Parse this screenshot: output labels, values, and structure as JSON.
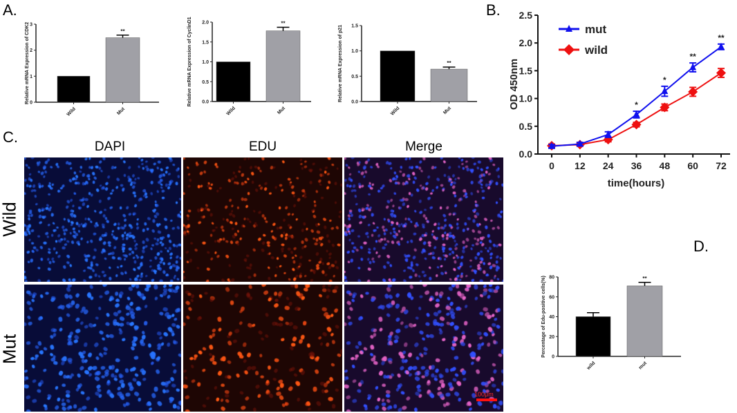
{
  "panel_labels": {
    "a": "A.",
    "b": "B.",
    "c": "C.",
    "d": "D."
  },
  "microscopy": {
    "columns": [
      "DAPI",
      "EDU",
      "Merge"
    ],
    "rows": [
      "Wild",
      "Mut"
    ],
    "scale_bar": "100μm",
    "colors": {
      "dapi": "#2a4dff",
      "edu": "#ff3a12",
      "merge_pink": "#e070c0"
    }
  },
  "chart_data": [
    {
      "id": "cdk2",
      "type": "bar",
      "title": "",
      "ylabel": "Relative mRNA Expression of CDK2",
      "xlabel": "",
      "categories": [
        "Wild",
        "Mut"
      ],
      "values": [
        1.0,
        2.48
      ],
      "errors": [
        0.0,
        0.1
      ],
      "annotations": [
        "",
        "**"
      ],
      "ylim": [
        0,
        3
      ],
      "yticks": [
        "0",
        "1",
        "2",
        "3"
      ],
      "colors": [
        "#000000",
        "#a0a0a6"
      ]
    },
    {
      "id": "cyclind1",
      "type": "bar",
      "title": "",
      "ylabel": "Relative mRNA Expression of CyclinD1",
      "xlabel": "",
      "categories": [
        "Wild",
        "Mut"
      ],
      "values": [
        1.0,
        1.78
      ],
      "errors": [
        0.0,
        0.09
      ],
      "annotations": [
        "",
        "**"
      ],
      "ylim": [
        0,
        2.0
      ],
      "yticks": [
        "0.0",
        "0.5",
        "1.0",
        "1.5",
        "2.0"
      ],
      "colors": [
        "#000000",
        "#a0a0a6"
      ]
    },
    {
      "id": "p21",
      "type": "bar",
      "title": "",
      "ylabel": "Relative mRNA Expression of p21",
      "xlabel": "",
      "categories": [
        "Wild",
        "Mut"
      ],
      "values": [
        1.0,
        0.64
      ],
      "errors": [
        0.0,
        0.04
      ],
      "annotations": [
        "",
        "**"
      ],
      "ylim": [
        0,
        1.5
      ],
      "yticks": [
        "0.0",
        "0.5",
        "1.0",
        "1.5"
      ],
      "colors": [
        "#000000",
        "#a0a0a6"
      ]
    },
    {
      "id": "growth",
      "type": "line",
      "title": "",
      "xlabel": "time(hours)",
      "ylabel": "OD 450nm",
      "x": [
        0,
        12,
        24,
        36,
        48,
        60,
        72
      ],
      "xticks": [
        "0",
        "12",
        "24",
        "36",
        "48",
        "60",
        "72"
      ],
      "ylim": [
        0,
        2.5
      ],
      "yticks": [
        "0.0",
        "0.5",
        "1.0",
        "1.5",
        "2.0",
        "2.5"
      ],
      "legend_position": "top-left",
      "series": [
        {
          "name": "mut",
          "color": "#1010ee",
          "marker": "triangle",
          "values": [
            0.14,
            0.18,
            0.35,
            0.71,
            1.13,
            1.56,
            1.93
          ],
          "errors": [
            0.03,
            0.03,
            0.05,
            0.06,
            0.09,
            0.08,
            0.05
          ]
        },
        {
          "name": "wild",
          "color": "#ee1010",
          "marker": "diamond",
          "values": [
            0.15,
            0.17,
            0.26,
            0.53,
            0.84,
            1.12,
            1.46
          ],
          "errors": [
            0.03,
            0.03,
            0.04,
            0.04,
            0.06,
            0.08,
            0.08
          ]
        }
      ],
      "annotations": [
        "",
        "",
        "",
        "*",
        "*",
        "**",
        "**"
      ]
    },
    {
      "id": "edu",
      "type": "bar",
      "title": "",
      "ylabel": "Percentage of Edu-positive cells(%)",
      "xlabel": "",
      "categories": [
        "wild",
        "mut"
      ],
      "values": [
        40,
        71
      ],
      "errors": [
        4,
        3.5
      ],
      "annotations": [
        "",
        "**"
      ],
      "ylim": [
        0,
        80
      ],
      "yticks": [
        "0",
        "20",
        "40",
        "60",
        "80"
      ],
      "colors": [
        "#000000",
        "#a0a0a6"
      ]
    }
  ]
}
